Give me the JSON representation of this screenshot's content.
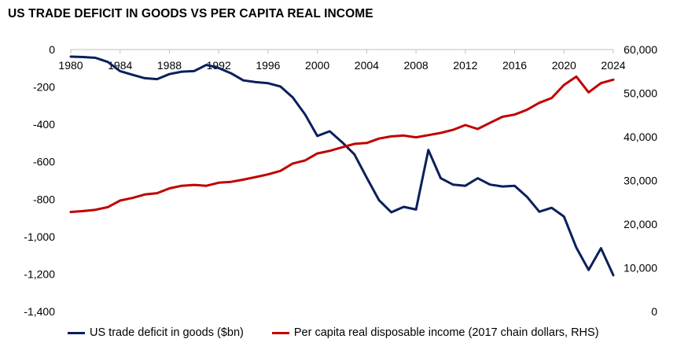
{
  "chart_data": {
    "type": "line",
    "title": "US TRADE DEFICIT IN GOODS VS PER CAPITA REAL INCOME",
    "x": [
      1980,
      1981,
      1982,
      1983,
      1984,
      1985,
      1986,
      1987,
      1988,
      1989,
      1990,
      1991,
      1992,
      1993,
      1994,
      1995,
      1996,
      1997,
      1998,
      1999,
      2000,
      2001,
      2002,
      2003,
      2004,
      2005,
      2006,
      2007,
      2008,
      2009,
      2010,
      2011,
      2012,
      2013,
      2014,
      2015,
      2016,
      2017,
      2018,
      2019,
      2020,
      2021,
      2022,
      2023,
      2024
    ],
    "x_tick_labels": [
      "1980",
      "1984",
      "1988",
      "1992",
      "1996",
      "2000",
      "2004",
      "2008",
      "2012",
      "2016",
      "2020",
      "2024"
    ],
    "x_tick_values": [
      1980,
      1984,
      1988,
      1992,
      1996,
      2000,
      2004,
      2008,
      2012,
      2016,
      2020,
      2024
    ],
    "y_left": {
      "ylim": [
        -1400,
        0
      ],
      "ticks": [
        0,
        -200,
        -400,
        -600,
        -800,
        -1000,
        -1200,
        -1400
      ],
      "tick_labels": [
        "0",
        "-200",
        "-400",
        "-600",
        "-800",
        "-1,000",
        "-1,200",
        "-1,400"
      ]
    },
    "y_right": {
      "ylim": [
        0,
        60000
      ],
      "ticks": [
        0,
        10000,
        20000,
        30000,
        40000,
        50000,
        60000
      ],
      "tick_labels": [
        "0",
        "10,000",
        "20,000",
        "30,000",
        "40,000",
        "50,000",
        "60,000"
      ]
    },
    "series": [
      {
        "name": "US trade deficit in goods ($bn)",
        "axis": "left",
        "color": "#0a1f5c",
        "values": [
          -38,
          -40,
          -44,
          -66,
          -115,
          -135,
          -153,
          -158,
          -131,
          -118,
          -115,
          -82,
          -99,
          -127,
          -165,
          -174,
          -180,
          -197,
          -256,
          -347,
          -462,
          -437,
          -495,
          -560,
          -685,
          -805,
          -870,
          -841,
          -855,
          -537,
          -688,
          -722,
          -728,
          -688,
          -722,
          -732,
          -728,
          -787,
          -867,
          -846,
          -893,
          -1059,
          -1178,
          -1062,
          -1206
        ]
      },
      {
        "name": "Per capita real disposable income (2017 chain dollars, RHS)",
        "axis": "right",
        "color": "#c00000",
        "values": [
          22800,
          23000,
          23300,
          23900,
          25400,
          26000,
          26800,
          27100,
          28200,
          28800,
          29000,
          28800,
          29500,
          29700,
          30200,
          30800,
          31400,
          32200,
          33900,
          34600,
          36200,
          36800,
          37600,
          38400,
          38600,
          39600,
          40100,
          40300,
          39900,
          40400,
          40900,
          41600,
          42700,
          41800,
          43200,
          44600,
          45100,
          46200,
          47800,
          48900,
          51900,
          53800,
          50200,
          52300,
          53100
        ]
      }
    ],
    "legend": "bottom"
  }
}
